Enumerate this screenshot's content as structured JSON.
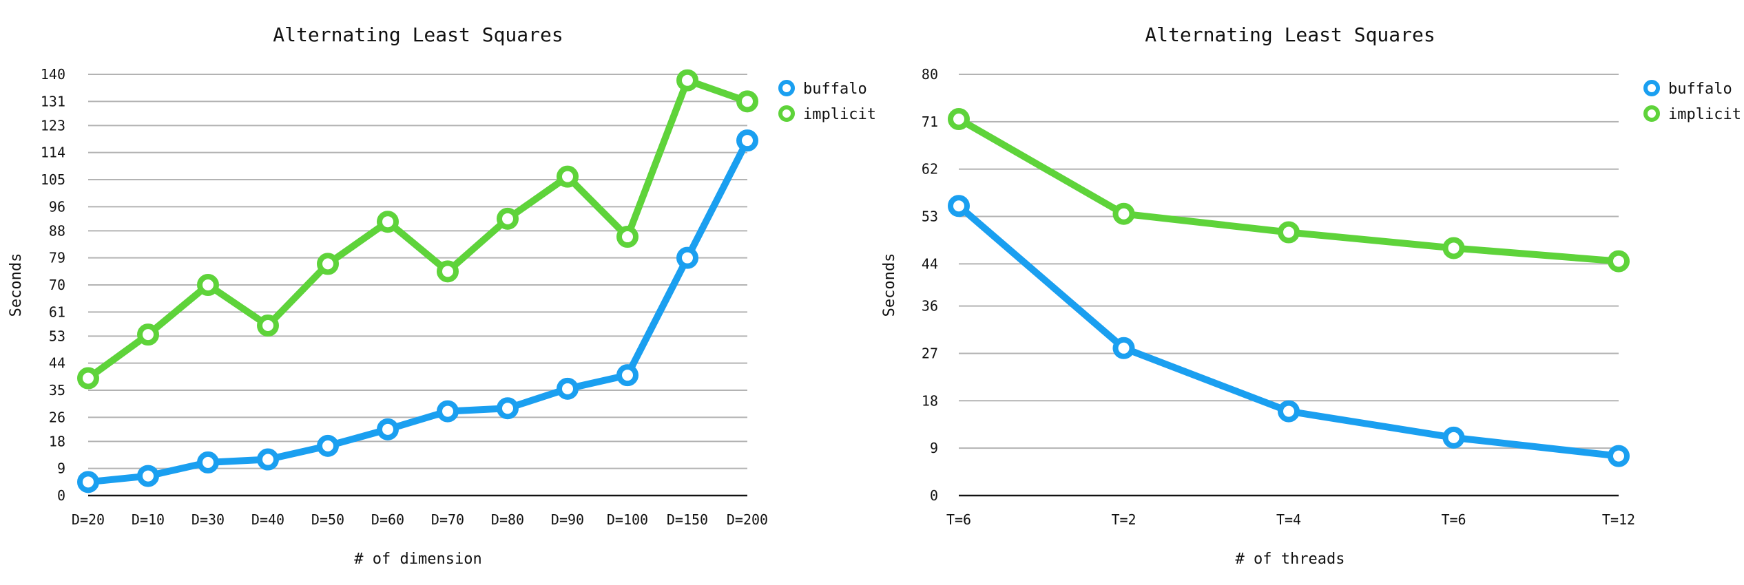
{
  "colors": {
    "buffalo": "#1a9ff0",
    "implicit": "#5ed33a"
  },
  "chart_data": [
    {
      "type": "line",
      "title": "Alternating Least Squares",
      "xlabel": "# of dimension",
      "ylabel": "Seconds",
      "categories": [
        "D=20",
        "D=10",
        "D=30",
        "D=40",
        "D=50",
        "D=60",
        "D=70",
        "D=80",
        "D=90",
        "D=100",
        "D=150",
        "D=200"
      ],
      "yticks": [
        0,
        9,
        18,
        26,
        35,
        44,
        53,
        61,
        70,
        79,
        88,
        96,
        105,
        114,
        123,
        131,
        140
      ],
      "ylim": [
        0,
        140
      ],
      "grid": true,
      "legend": "right",
      "series": [
        {
          "name": "buffalo",
          "values": [
            4.5,
            6.5,
            11,
            12,
            16.5,
            22,
            28,
            29,
            35.5,
            40,
            79,
            118
          ]
        },
        {
          "name": "implicit",
          "values": [
            39,
            53.5,
            70,
            56.5,
            77,
            91,
            74.5,
            92,
            106,
            86,
            138,
            131
          ]
        }
      ]
    },
    {
      "type": "line",
      "title": "Alternating Least Squares",
      "xlabel": "# of threads",
      "ylabel": "Seconds",
      "categories": [
        "T=6",
        "T=2",
        "T=4",
        "T=6",
        "T=12"
      ],
      "yticks": [
        0,
        9,
        18,
        27,
        36,
        44,
        53,
        62,
        71,
        80
      ],
      "ylim": [
        0,
        80
      ],
      "grid": true,
      "legend": "top-right",
      "series": [
        {
          "name": "buffalo",
          "values": [
            55,
            28,
            16,
            11,
            7.5
          ]
        },
        {
          "name": "implicit",
          "values": [
            71.5,
            53.5,
            50,
            47,
            44.5
          ]
        }
      ]
    }
  ]
}
